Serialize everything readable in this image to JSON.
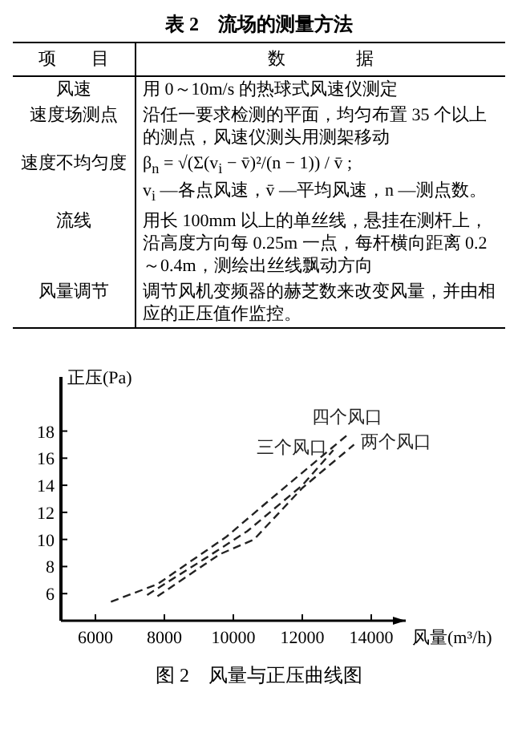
{
  "chart_data": [
    {
      "type": "other",
      "title": "表 2　流场的测量方法",
      "annotations": [
        "项　　目",
        "数　　　　据",
        "风速",
        "用 0～10m/s 的热球式风速仪测定",
        "速度场测点",
        "沿任一要求检测的平面，均匀布置 35 个以上的测点，风速仪测头用测架移动",
        "速度不均匀度",
        "β$_{n}$ = √(Σ(v$_{i}$ − v̄)²/(n − 1)) / v̄ ;\nv$_{i}$ —各点风速，v̄ —平均风速，n —测点数。",
        "流线",
        "用长 100mm 以上的单丝线，悬挂在测杆上，沿高度方向每 0.25m 一点，每杆横向距离 0.2～0.4m，测绘出丝线飘动方向",
        "风量调节",
        "调节风机变频器的赫芝数来改变风量，并由相应的正压值作监控。"
      ]
    },
    {
      "type": "line",
      "title": "图 2　风量与正压曲线图",
      "xlabel": "风量(m³/h)",
      "ylabel": "正压(Pa)",
      "xlim": [
        5000,
        15000
      ],
      "xticks": [
        6000,
        8000,
        10000,
        12000,
        14000
      ],
      "ylim": [
        4,
        22
      ],
      "yticks": [
        6,
        8,
        10,
        12,
        14,
        16,
        18
      ],
      "grid": false,
      "line_style": "dashed",
      "marker": "none",
      "series": [
        {
          "name": "两个风口",
          "color": "#222222",
          "x": [
            7800,
            9600,
            10600,
            12000,
            13500
          ],
          "values": [
            5.8,
            8.9,
            10.0,
            13.8,
            17.0
          ]
        },
        {
          "name": "三个风口",
          "color": "#222222",
          "x": [
            7500,
            9000,
            10400,
            12000,
            12900
          ],
          "values": [
            5.9,
            8.3,
            10.6,
            14.0,
            16.6
          ]
        },
        {
          "name": "四个风口",
          "color": "#222222",
          "x": [
            6450,
            7800,
            9800,
            11000,
            13300
          ],
          "values": [
            5.4,
            6.7,
            10.2,
            12.8,
            17.7
          ]
        }
      ]
    }
  ]
}
